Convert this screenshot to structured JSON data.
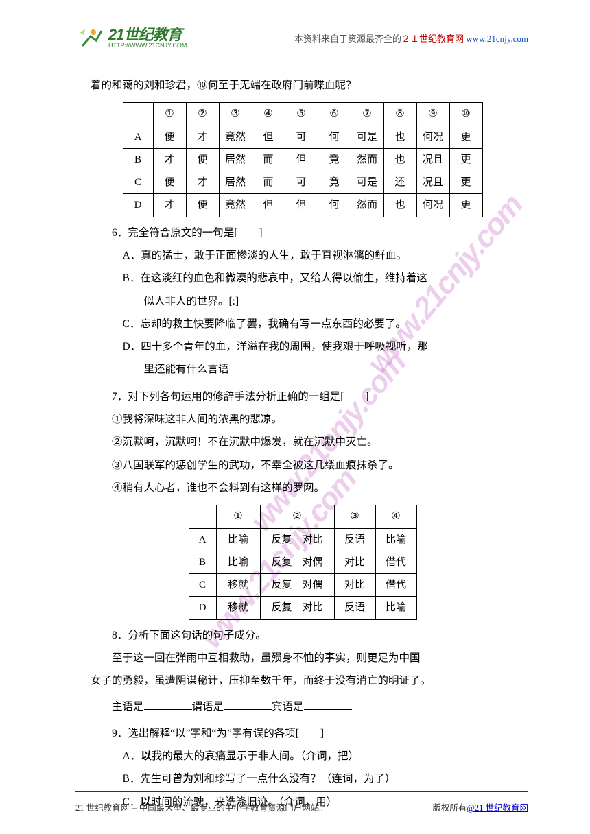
{
  "header": {
    "logo_main": "21世纪教育",
    "logo_sub": "HTTP://WWW.21CNJY.COM",
    "source_prefix": "本资料来自于资源最齐全的",
    "source_brand": "２１世纪教育网",
    "source_url": "www.21cnjy.com"
  },
  "intro_line": "着的和蔼的刘和珍君，⑩何至于无端在政府门前喋血呢？",
  "table1": {
    "headers": [
      "",
      "①",
      "②",
      "③",
      "④",
      "⑤",
      "⑥",
      "⑦",
      "⑧",
      "⑨",
      "⑩"
    ],
    "rows": [
      [
        "A",
        "便",
        "才",
        "竟然",
        "但",
        "可",
        "何",
        "可是",
        "也",
        "何况",
        "更"
      ],
      [
        "B",
        "才",
        "便",
        "居然",
        "而",
        "但",
        "竟",
        "然而",
        "也",
        "况且",
        "更"
      ],
      [
        "C",
        "便",
        "才",
        "居然",
        "而",
        "可",
        "竟",
        "可是",
        "还",
        "况且",
        "更"
      ],
      [
        "D",
        "才",
        "便",
        "竟然",
        "但",
        "但",
        "何",
        "然而",
        "也",
        "何况",
        "更"
      ]
    ]
  },
  "q6": {
    "text": "6．完全符合原文的一句是[　　]",
    "optA": "A．真的猛士，敢于正面惨淡的人生，敢于直视淋漓的鲜血。",
    "optB1": "B．在这淡红的血色和微漠的悲哀中，又给人得以偷生，维持着这",
    "optB2": "似人非人的世界。[:]",
    "optC": "C．忘却的救主快要降临了罢，我确有写一点东西的必要了。",
    "optD1": "D．四十多个青年的血，洋溢在我的周围，使我艰于呼吸视听，那",
    "optD2": "里还能有什么言语"
  },
  "q7": {
    "text": "7．对下列各句运用的修辞手法分析正确的一组是[　　]",
    "s1": "①我将深味这非人间的浓黑的悲凉。",
    "s2": "②沉默呵，沉默呵！不在沉默中爆发，就在沉默中灭亡。",
    "s3": "③八国联军的惩创学生的武功，不幸全被这几缕血痕抹杀了。",
    "s4": "④稍有人心者，谁也不会料到有这样的罗网。"
  },
  "table2": {
    "headers": [
      "",
      "①",
      "②",
      "③",
      "④"
    ],
    "rows": [
      [
        "A",
        "比喻",
        "反复　对比",
        "反语",
        "比喻"
      ],
      [
        "B",
        "比喻",
        "反复　对偶",
        "对比",
        "借代"
      ],
      [
        "C",
        "移就",
        "反复　对偶",
        "对比",
        "借代"
      ],
      [
        "D",
        "移就",
        "反复　对比",
        "反语",
        "比喻"
      ]
    ]
  },
  "q8": {
    "text": "8．分析下面这句话的句子成分。",
    "body1": "至于这一回在弹雨中互相救助，虽殒身不恤的事实，则更足为中国",
    "body2": "女子的勇毅，虽遭阴谋秘计，压抑至数千年，而终于没有消亡的明证了。",
    "fill_prefix1": "主语是",
    "fill_prefix2": "谓语是",
    "fill_prefix3": "宾语是"
  },
  "q9": {
    "text": "9．选出解释“以”字和“为”字有误的各项[　　]",
    "optA_pre": "A．",
    "optA_bold": "以",
    "optA_post": "我的最大的哀痛显示于非人间。（介词，把）",
    "optB_pre": "B．先生可曾",
    "optB_bold": "为",
    "optB_post": "刘和珍写了一点什么没有？（连词，为了）",
    "optC_pre": "C．",
    "optC_bold": "以",
    "optC_post": "时间的流驶，来洗涤旧迹。（介词，用）"
  },
  "footer": {
    "left": "21 世纪教育网 -- 中国最大型、最专业的中小学教育资源门户网站。",
    "right_prefix": "版权所有",
    "right_link": "@21 世纪教育网"
  }
}
